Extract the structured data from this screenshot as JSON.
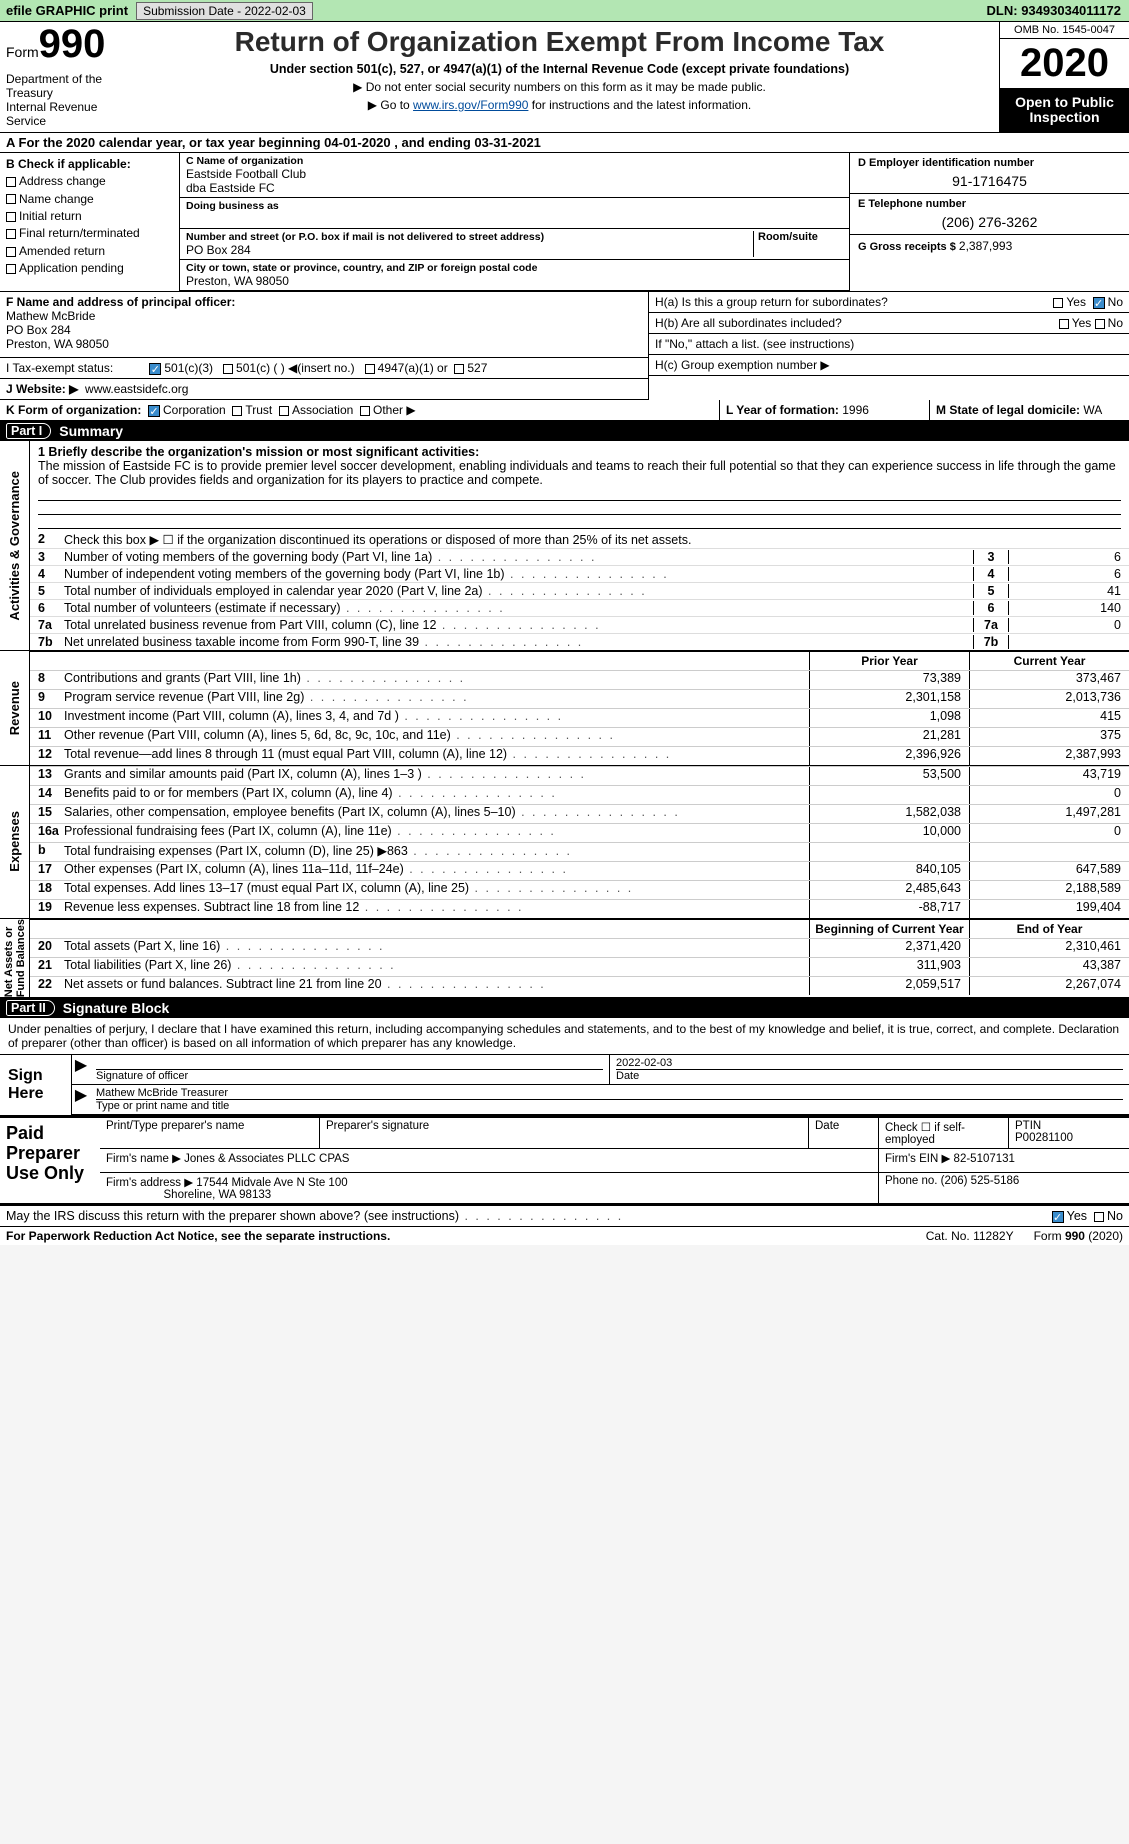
{
  "topbar": {
    "efile": "efile GRAPHIC print",
    "subdate_lbl": "Submission Date - ",
    "subdate": "2022-02-03",
    "dln_lbl": "DLN: ",
    "dln": "93493034011172"
  },
  "header": {
    "form_word": "Form",
    "form_num": "990",
    "dept": "Department of the Treasury\nInternal Revenue Service",
    "title": "Return of Organization Exempt From Income Tax",
    "subtitle": "Under section 501(c), 527, or 4947(a)(1) of the Internal Revenue Code (except private foundations)",
    "note1": "▶ Do not enter social security numbers on this form as it may be made public.",
    "note2_pre": "▶ Go to ",
    "note2_link": "www.irs.gov/Form990",
    "note2_post": " for instructions and the latest information.",
    "omb": "OMB No. 1545-0047",
    "year": "2020",
    "otp": "Open to Public Inspection"
  },
  "period": {
    "text": "A   For the 2020 calendar year, or tax year beginning 04-01-2020    , and ending 03-31-2021"
  },
  "boxB": {
    "hdr": "B Check if applicable:",
    "opts": [
      "Address change",
      "Name change",
      "Initial return",
      "Final return/terminated",
      "Amended return",
      "Application pending"
    ]
  },
  "boxC": {
    "name_lbl": "C Name of organization",
    "name": "Eastside Football Club",
    "dba": "dba Eastside FC",
    "dba_lbl": "Doing business as",
    "street_lbl": "Number and street (or P.O. box if mail is not delivered to street address)",
    "room_lbl": "Room/suite",
    "street": "PO Box 284",
    "city_lbl": "City or town, state or province, country, and ZIP or foreign postal code",
    "city": "Preston, WA  98050"
  },
  "boxD": {
    "lbl": "D Employer identification number",
    "val": "91-1716475"
  },
  "boxE": {
    "lbl": "E Telephone number",
    "val": "(206) 276-3262"
  },
  "boxG": {
    "lbl": "G Gross receipts $ ",
    "val": "2,387,993"
  },
  "boxF": {
    "lbl": "F  Name and address of principal officer:",
    "name": "Mathew McBride",
    "addr1": "PO Box 284",
    "addr2": "Preston, WA  98050"
  },
  "boxH": {
    "a_lbl": "H(a)  Is this a group return for subordinates?",
    "b_lbl": "H(b)  Are all subordinates included?",
    "b_note": "If \"No,\" attach a list. (see instructions)",
    "c_lbl": "H(c)  Group exemption number ▶",
    "yes": "Yes",
    "no": "No"
  },
  "rowI": {
    "lbl": "I   Tax-exempt status:",
    "opt1": "501(c)(3)",
    "opt2": "501(c) (  ) ◀(insert no.)",
    "opt3": "4947(a)(1) or",
    "opt4": "527"
  },
  "rowJ": {
    "lbl": "J   Website: ▶",
    "val": "www.eastsidefc.org"
  },
  "rowK": {
    "lbl": "K Form of organization:",
    "opts": [
      "Corporation",
      "Trust",
      "Association",
      "Other ▶"
    ]
  },
  "rowL": {
    "lbl": "L Year of formation: ",
    "val": "1996"
  },
  "rowM": {
    "lbl": "M State of legal domicile: ",
    "val": "WA"
  },
  "parts": {
    "p1": "Part I",
    "p1t": "Summary",
    "p2": "Part II",
    "p2t": "Signature Block"
  },
  "summary": {
    "line1_lbl": "1  Briefly describe the organization's mission or most significant activities:",
    "mission": "The mission of Eastside FC is to provide premier level soccer development, enabling individuals and teams to reach their full potential so that they can experience success in life through the game of soccer. The Club provides fields and organization for its players to practice and compete.",
    "line2": "Check this box ▶ ☐ if the organization discontinued its operations or disposed of more than 25% of its net assets.",
    "ag": [
      {
        "n": "3",
        "t": "Number of voting members of the governing body (Part VI, line 1a)",
        "v": "6"
      },
      {
        "n": "4",
        "t": "Number of independent voting members of the governing body (Part VI, line 1b)",
        "v": "6"
      },
      {
        "n": "5",
        "t": "Total number of individuals employed in calendar year 2020 (Part V, line 2a)",
        "v": "41"
      },
      {
        "n": "6",
        "t": "Total number of volunteers (estimate if necessary)",
        "v": "140"
      },
      {
        "n": "7a",
        "t": "Total unrelated business revenue from Part VIII, column (C), line 12",
        "v": "0"
      },
      {
        "n": "7b",
        "t": "Net unrelated business taxable income from Form 990-T, line 39",
        "v": ""
      }
    ]
  },
  "cols": {
    "prior": "Prior Year",
    "current": "Current Year",
    "begin": "Beginning of Current Year",
    "end": "End of Year"
  },
  "revenue": [
    {
      "n": "8",
      "t": "Contributions and grants (Part VIII, line 1h)",
      "p": "73,389",
      "c": "373,467"
    },
    {
      "n": "9",
      "t": "Program service revenue (Part VIII, line 2g)",
      "p": "2,301,158",
      "c": "2,013,736"
    },
    {
      "n": "10",
      "t": "Investment income (Part VIII, column (A), lines 3, 4, and 7d )",
      "p": "1,098",
      "c": "415"
    },
    {
      "n": "11",
      "t": "Other revenue (Part VIII, column (A), lines 5, 6d, 8c, 9c, 10c, and 11e)",
      "p": "21,281",
      "c": "375"
    },
    {
      "n": "12",
      "t": "Total revenue—add lines 8 through 11 (must equal Part VIII, column (A), line 12)",
      "p": "2,396,926",
      "c": "2,387,993"
    }
  ],
  "expenses": [
    {
      "n": "13",
      "t": "Grants and similar amounts paid (Part IX, column (A), lines 1–3 )",
      "p": "53,500",
      "c": "43,719"
    },
    {
      "n": "14",
      "t": "Benefits paid to or for members (Part IX, column (A), line 4)",
      "p": "",
      "c": "0"
    },
    {
      "n": "15",
      "t": "Salaries, other compensation, employee benefits (Part IX, column (A), lines 5–10)",
      "p": "1,582,038",
      "c": "1,497,281"
    },
    {
      "n": "16a",
      "t": "Professional fundraising fees (Part IX, column (A), line 11e)",
      "p": "10,000",
      "c": "0"
    },
    {
      "n": "b",
      "t": "Total fundraising expenses (Part IX, column (D), line 25) ▶863",
      "p": "",
      "c": ""
    },
    {
      "n": "17",
      "t": "Other expenses (Part IX, column (A), lines 11a–11d, 11f–24e)",
      "p": "840,105",
      "c": "647,589"
    },
    {
      "n": "18",
      "t": "Total expenses. Add lines 13–17 (must equal Part IX, column (A), line 25)",
      "p": "2,485,643",
      "c": "2,188,589"
    },
    {
      "n": "19",
      "t": "Revenue less expenses. Subtract line 18 from line 12",
      "p": "-88,717",
      "c": "199,404"
    }
  ],
  "netassets": [
    {
      "n": "20",
      "t": "Total assets (Part X, line 16)",
      "p": "2,371,420",
      "c": "2,310,461"
    },
    {
      "n": "21",
      "t": "Total liabilities (Part X, line 26)",
      "p": "311,903",
      "c": "43,387"
    },
    {
      "n": "22",
      "t": "Net assets or fund balances. Subtract line 21 from line 20",
      "p": "2,059,517",
      "c": "2,267,074"
    }
  ],
  "vtabs": {
    "ag": "Activities & Governance",
    "rev": "Revenue",
    "exp": "Expenses",
    "na": "Net Assets or\nFund Balances"
  },
  "sigblock": {
    "decl": "Under penalties of perjury, I declare that I have examined this return, including accompanying schedules and statements, and to the best of my knowledge and belief, it is true, correct, and complete. Declaration of preparer (other than officer) is based on all information of which preparer has any knowledge.",
    "sign_here": "Sign Here",
    "sig_officer": "Signature of officer",
    "date": "Date",
    "sig_date": "2022-02-03",
    "type_name": "Mathew McBride  Treasurer",
    "type_lbl": "Type or print name and title"
  },
  "preparer": {
    "hdr": "Paid Preparer Use Only",
    "print_lbl": "Print/Type preparer's name",
    "sig_lbl": "Preparer's signature",
    "date_lbl": "Date",
    "check_lbl": "Check ☐ if self-employed",
    "ptin_lbl": "PTIN",
    "ptin": "P00281100",
    "firm_name_lbl": "Firm's name   ▶",
    "firm_name": "Jones & Associates PLLC CPAS",
    "firm_ein_lbl": "Firm's EIN ▶",
    "firm_ein": "82-5107131",
    "firm_addr_lbl": "Firm's address ▶",
    "firm_addr": "17544 Midvale Ave N Ste 100",
    "firm_city": "Shoreline, WA  98133",
    "phone_lbl": "Phone no. ",
    "phone": "(206) 525-5186"
  },
  "discuss": {
    "q": "May the IRS discuss this return with the preparer shown above? (see instructions)",
    "yes": "Yes",
    "no": "No"
  },
  "footer": {
    "l": "For Paperwork Reduction Act Notice, see the separate instructions.",
    "m": "Cat. No. 11282Y",
    "r": "Form 990 (2020)"
  },
  "colors": {
    "topbar_bg": "#b3e6b3",
    "link": "#004b9b",
    "check_blue": "#3a8ccc"
  }
}
